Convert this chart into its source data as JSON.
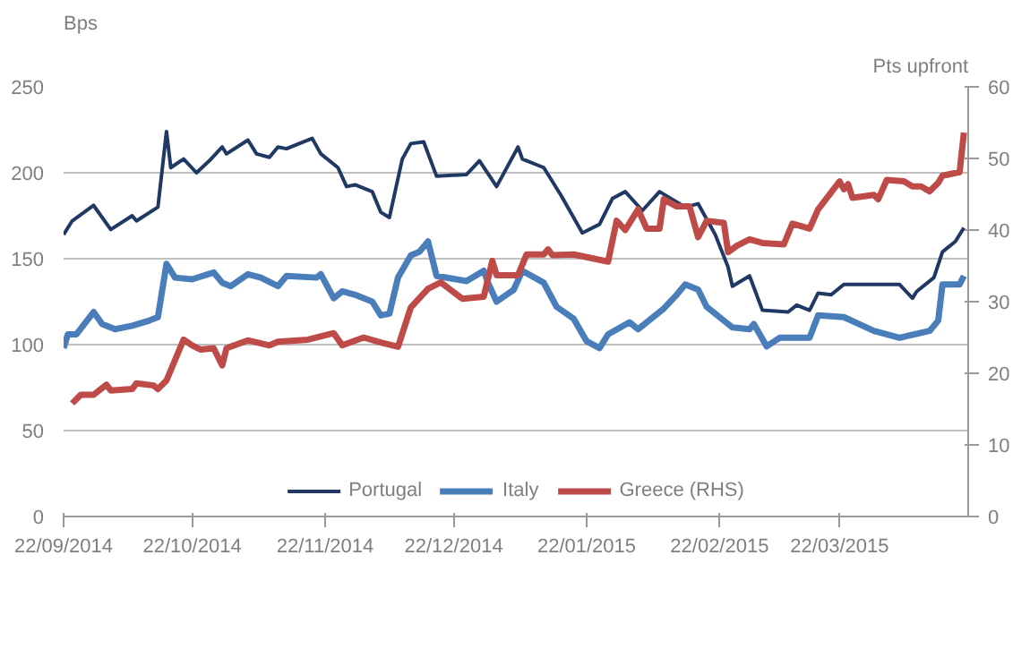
{
  "chart_data": {
    "type": "line",
    "ylabel": "Bps",
    "y2label": "Pts upfront",
    "xlim": [
      "2014-09-22",
      "2015-04-21"
    ],
    "xticks": [
      {
        "value": "2014-09-22",
        "label": "22/09/2014"
      },
      {
        "value": "2014-10-22",
        "label": "22/10/2014"
      },
      {
        "value": "2014-11-22",
        "label": "22/11/2014"
      },
      {
        "value": "2014-12-22",
        "label": "22/12/2014"
      },
      {
        "value": "2015-01-22",
        "label": "22/01/2015"
      },
      {
        "value": "2015-02-22",
        "label": "22/02/2015"
      },
      {
        "value": "2015-03-22",
        "label": "22/03/2015"
      }
    ],
    "ylim": [
      0,
      250
    ],
    "yticks": [
      0,
      50,
      100,
      150,
      200,
      250
    ],
    "y2lim": [
      0,
      60
    ],
    "y2ticks": [
      0,
      10,
      20,
      30,
      40,
      50,
      60
    ],
    "grid": "y",
    "legend": "bottom",
    "line_style": "solid",
    "marker": "none",
    "series": [
      {
        "name": "Portugal",
        "color": "#1f3864",
        "x": [
          "2014-09-22",
          "2014-09-24",
          "2014-09-29",
          "2014-10-03",
          "2014-10-08",
          "2014-10-09",
          "2014-10-14",
          "2014-10-16",
          "2014-10-17",
          "2014-10-20",
          "2014-10-23",
          "2014-10-26",
          "2014-10-29",
          "2014-10-30",
          "2014-11-04",
          "2014-11-06",
          "2014-11-09",
          "2014-11-11",
          "2014-11-13",
          "2014-11-17",
          "2014-11-19",
          "2014-11-21",
          "2014-11-25",
          "2014-11-27",
          "2014-11-29",
          "2014-12-03",
          "2014-12-05",
          "2014-12-07",
          "2014-12-10",
          "2014-12-12",
          "2014-12-15",
          "2014-12-18",
          "2014-12-25",
          "2014-12-28",
          "2015-01-01",
          "2015-01-06",
          "2015-01-07",
          "2015-01-12",
          "2015-01-16",
          "2015-01-21",
          "2015-01-25",
          "2015-01-28",
          "2015-01-31",
          "2015-02-04",
          "2015-02-08",
          "2015-02-10",
          "2015-02-14",
          "2015-02-17",
          "2015-02-21",
          "2015-02-24",
          "2015-02-25",
          "2015-03-01",
          "2015-03-04",
          "2015-03-10",
          "2015-03-12",
          "2015-03-15",
          "2015-03-17",
          "2015-03-20",
          "2015-03-23",
          "2015-03-30",
          "2015-04-05",
          "2015-04-08",
          "2015-04-09",
          "2015-04-13",
          "2015-04-15",
          "2015-04-18",
          "2015-04-20"
        ],
        "values": [
          164,
          172,
          181,
          167,
          175,
          172,
          180,
          224,
          203,
          208,
          200,
          207,
          215,
          211,
          219,
          211,
          209,
          215,
          214,
          218,
          220,
          211,
          203,
          192,
          193,
          189,
          177,
          174,
          208,
          217,
          218,
          198,
          199,
          207,
          192,
          215,
          208,
          203,
          187,
          165,
          170,
          185,
          189,
          178,
          189,
          186,
          180,
          182,
          164,
          145,
          134,
          140,
          120,
          119,
          123,
          120,
          130,
          129,
          135,
          135,
          135,
          127,
          131,
          139,
          154,
          160,
          168
        ]
      },
      {
        "name": "Italy",
        "color": "#4a7ebb",
        "x": [
          "2014-09-22",
          "2014-09-23",
          "2014-09-25",
          "2014-09-29",
          "2014-10-01",
          "2014-10-04",
          "2014-10-08",
          "2014-10-12",
          "2014-10-14",
          "2014-10-16",
          "2014-10-18",
          "2014-10-22",
          "2014-10-27",
          "2014-10-29",
          "2014-10-31",
          "2014-11-04",
          "2014-11-07",
          "2014-11-11",
          "2014-11-13",
          "2014-11-20",
          "2014-11-21",
          "2014-11-24",
          "2014-11-26",
          "2014-11-29",
          "2014-12-03",
          "2014-12-05",
          "2014-12-07",
          "2014-12-09",
          "2014-12-12",
          "2014-12-14",
          "2014-12-16",
          "2014-12-18",
          "2014-12-25",
          "2014-12-29",
          "2014-12-30",
          "2015-01-01",
          "2015-01-05",
          "2015-01-07",
          "2015-01-12",
          "2015-01-15",
          "2015-01-19",
          "2015-01-22",
          "2015-01-25",
          "2015-01-27",
          "2015-02-01",
          "2015-02-03",
          "2015-02-09",
          "2015-02-12",
          "2015-02-14",
          "2015-02-17",
          "2015-02-19",
          "2015-02-23",
          "2015-02-25",
          "2015-03-01",
          "2015-03-02",
          "2015-03-05",
          "2015-03-08",
          "2015-03-15",
          "2015-03-17",
          "2015-03-23",
          "2015-03-30",
          "2015-04-05",
          "2015-04-12",
          "2015-04-14",
          "2015-04-15",
          "2015-04-19",
          "2015-04-20"
        ],
        "values": [
          98,
          106,
          106,
          119,
          112,
          109,
          111,
          114,
          116,
          147,
          139,
          138,
          142,
          136,
          134,
          141,
          139,
          134,
          140,
          139,
          141,
          127,
          131,
          129,
          125,
          117,
          118,
          139,
          152,
          154,
          160,
          140,
          137,
          143,
          136,
          125,
          132,
          143,
          136,
          122,
          115,
          102,
          98,
          106,
          113,
          109,
          121,
          129,
          135,
          132,
          122,
          114,
          110,
          109,
          112,
          99,
          104,
          104,
          117,
          116,
          108,
          104,
          108,
          114,
          135,
          135,
          140
        ]
      },
      {
        "name": "Greece (RHS)",
        "color": "#be4b48",
        "axis": "y2",
        "x": [
          "2014-09-24",
          "2014-09-26",
          "2014-09-29",
          "2014-10-02",
          "2014-10-03",
          "2014-10-08",
          "2014-10-09",
          "2014-10-13",
          "2014-10-14",
          "2014-10-16",
          "2014-10-20",
          "2014-10-22",
          "2014-10-24",
          "2014-10-27",
          "2014-10-29",
          "2014-10-30",
          "2014-11-04",
          "2014-11-09",
          "2014-11-11",
          "2014-11-18",
          "2014-11-24",
          "2014-11-26",
          "2014-12-01",
          "2014-12-05",
          "2014-12-09",
          "2014-12-12",
          "2014-12-16",
          "2014-12-19",
          "2014-12-24",
          "2014-12-29",
          "2014-12-31",
          "2015-01-01",
          "2015-01-06",
          "2015-01-08",
          "2015-01-12",
          "2015-01-13",
          "2015-01-14",
          "2015-01-19",
          "2015-01-27",
          "2015-01-29",
          "2015-01-31",
          "2015-02-03",
          "2015-02-05",
          "2015-02-08",
          "2015-02-09",
          "2015-02-12",
          "2015-02-15",
          "2015-02-17",
          "2015-02-19",
          "2015-02-23",
          "2015-02-24",
          "2015-02-26",
          "2015-03-01",
          "2015-03-04",
          "2015-03-09",
          "2015-03-11",
          "2015-03-15",
          "2015-03-17",
          "2015-03-22",
          "2015-03-23",
          "2015-03-24",
          "2015-03-25",
          "2015-03-30",
          "2015-03-31",
          "2015-04-02",
          "2015-04-06",
          "2015-04-08",
          "2015-04-10",
          "2015-04-12",
          "2015-04-14",
          "2015-04-15",
          "2015-04-19",
          "2015-04-20"
        ],
        "values": [
          15.8,
          17.0,
          17.0,
          18.4,
          17.6,
          17.8,
          18.6,
          18.3,
          17.8,
          19.0,
          24.7,
          23.9,
          23.3,
          23.5,
          21.1,
          23.5,
          24.6,
          23.9,
          24.4,
          24.7,
          25.6,
          23.9,
          25.0,
          24.3,
          23.7,
          29.2,
          31.8,
          32.7,
          30.4,
          30.7,
          35.7,
          33.7,
          33.7,
          36.6,
          36.6,
          37.3,
          36.5,
          36.6,
          35.6,
          41.3,
          40.0,
          42.9,
          40.2,
          40.2,
          44.3,
          43.3,
          43.3,
          39.0,
          41.3,
          41.0,
          36.9,
          37.8,
          38.7,
          38.2,
          38.0,
          40.9,
          40.2,
          42.9,
          46.8,
          45.7,
          46.4,
          44.5,
          44.9,
          44.3,
          47.0,
          46.8,
          46.1,
          46.1,
          45.4,
          46.6,
          47.6,
          48.1,
          53.6
        ]
      }
    ]
  }
}
